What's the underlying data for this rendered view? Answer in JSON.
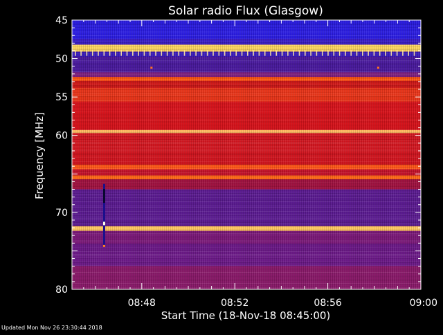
{
  "chart_data": {
    "type": "heatmap",
    "title": "Solar radio Flux (Glasgow)",
    "xlabel": "Start Time (18-Nov-18 08:45:00)",
    "ylabel": "Frequency [MHz]",
    "x_unit": "time",
    "xlim": [
      "08:45",
      "09:00"
    ],
    "x_ticks": [
      {
        "value": "08:48",
        "label": "08:48"
      },
      {
        "value": "08:52",
        "label": "08:52"
      },
      {
        "value": "08:56",
        "label": "08:56"
      },
      {
        "value": "09:00",
        "label": "09:00"
      }
    ],
    "ylim": [
      45,
      80
    ],
    "y_inverted": true,
    "y_ticks": [
      45,
      50,
      55,
      60,
      70,
      80
    ],
    "colormap": [
      "#1a0f8c",
      "#3a1fd8",
      "#7a1f9e",
      "#c0102a",
      "#e82010",
      "#ff6a10",
      "#ffd040",
      "#fffbe8"
    ],
    "bands": [
      {
        "from": 45.0,
        "to": 47.5,
        "color": "#2a1ce0"
      },
      {
        "from": 47.5,
        "to": 48.2,
        "color": "#3a1fc8"
      },
      {
        "from": 48.2,
        "to": 49.1,
        "color": "#ffd860"
      },
      {
        "from": 49.1,
        "to": 49.8,
        "color": "#3818b8"
      },
      {
        "from": 49.8,
        "to": 51.8,
        "color": "#4a1a9e"
      },
      {
        "from": 51.8,
        "to": 52.4,
        "color": "#7a1a7a"
      },
      {
        "from": 52.4,
        "to": 52.9,
        "color": "#ff5a10"
      },
      {
        "from": 52.9,
        "to": 53.8,
        "color": "#d01818"
      },
      {
        "from": 53.8,
        "to": 55.6,
        "color": "#e83418"
      },
      {
        "from": 55.6,
        "to": 59.3,
        "color": "#d8141c"
      },
      {
        "from": 59.3,
        "to": 59.7,
        "color": "#ffb860"
      },
      {
        "from": 59.7,
        "to": 63.8,
        "color": "#d0141e"
      },
      {
        "from": 63.8,
        "to": 64.4,
        "color": "#ff5818"
      },
      {
        "from": 64.4,
        "to": 65.2,
        "color": "#c4122a"
      },
      {
        "from": 65.2,
        "to": 65.7,
        "color": "#ff6a18"
      },
      {
        "from": 65.7,
        "to": 67.0,
        "color": "#a01240"
      },
      {
        "from": 67.0,
        "to": 71.8,
        "color": "#5a1a90"
      },
      {
        "from": 71.8,
        "to": 72.4,
        "color": "#ffc860"
      },
      {
        "from": 72.4,
        "to": 74.0,
        "color": "#7a1878"
      },
      {
        "from": 74.0,
        "to": 77.0,
        "color": "#6a1886"
      },
      {
        "from": 77.0,
        "to": 80.0,
        "color": "#8a1a6a"
      }
    ],
    "features": [
      {
        "type": "spike-train",
        "freq": 49.2,
        "color": "#ffe8a0"
      },
      {
        "type": "dot",
        "time": "08:48:25",
        "freq": 51.2,
        "color": "#ff7020"
      },
      {
        "type": "dot",
        "time": "08:58:10",
        "freq": 51.2,
        "color": "#ff7020"
      },
      {
        "type": "vertical-burst",
        "time": "08:46:23",
        "freq_from": 66.3,
        "freq_to": 74.5
      }
    ]
  },
  "footer": {
    "updated": "Updated Mon Nov 26 23:30:44 2018"
  }
}
